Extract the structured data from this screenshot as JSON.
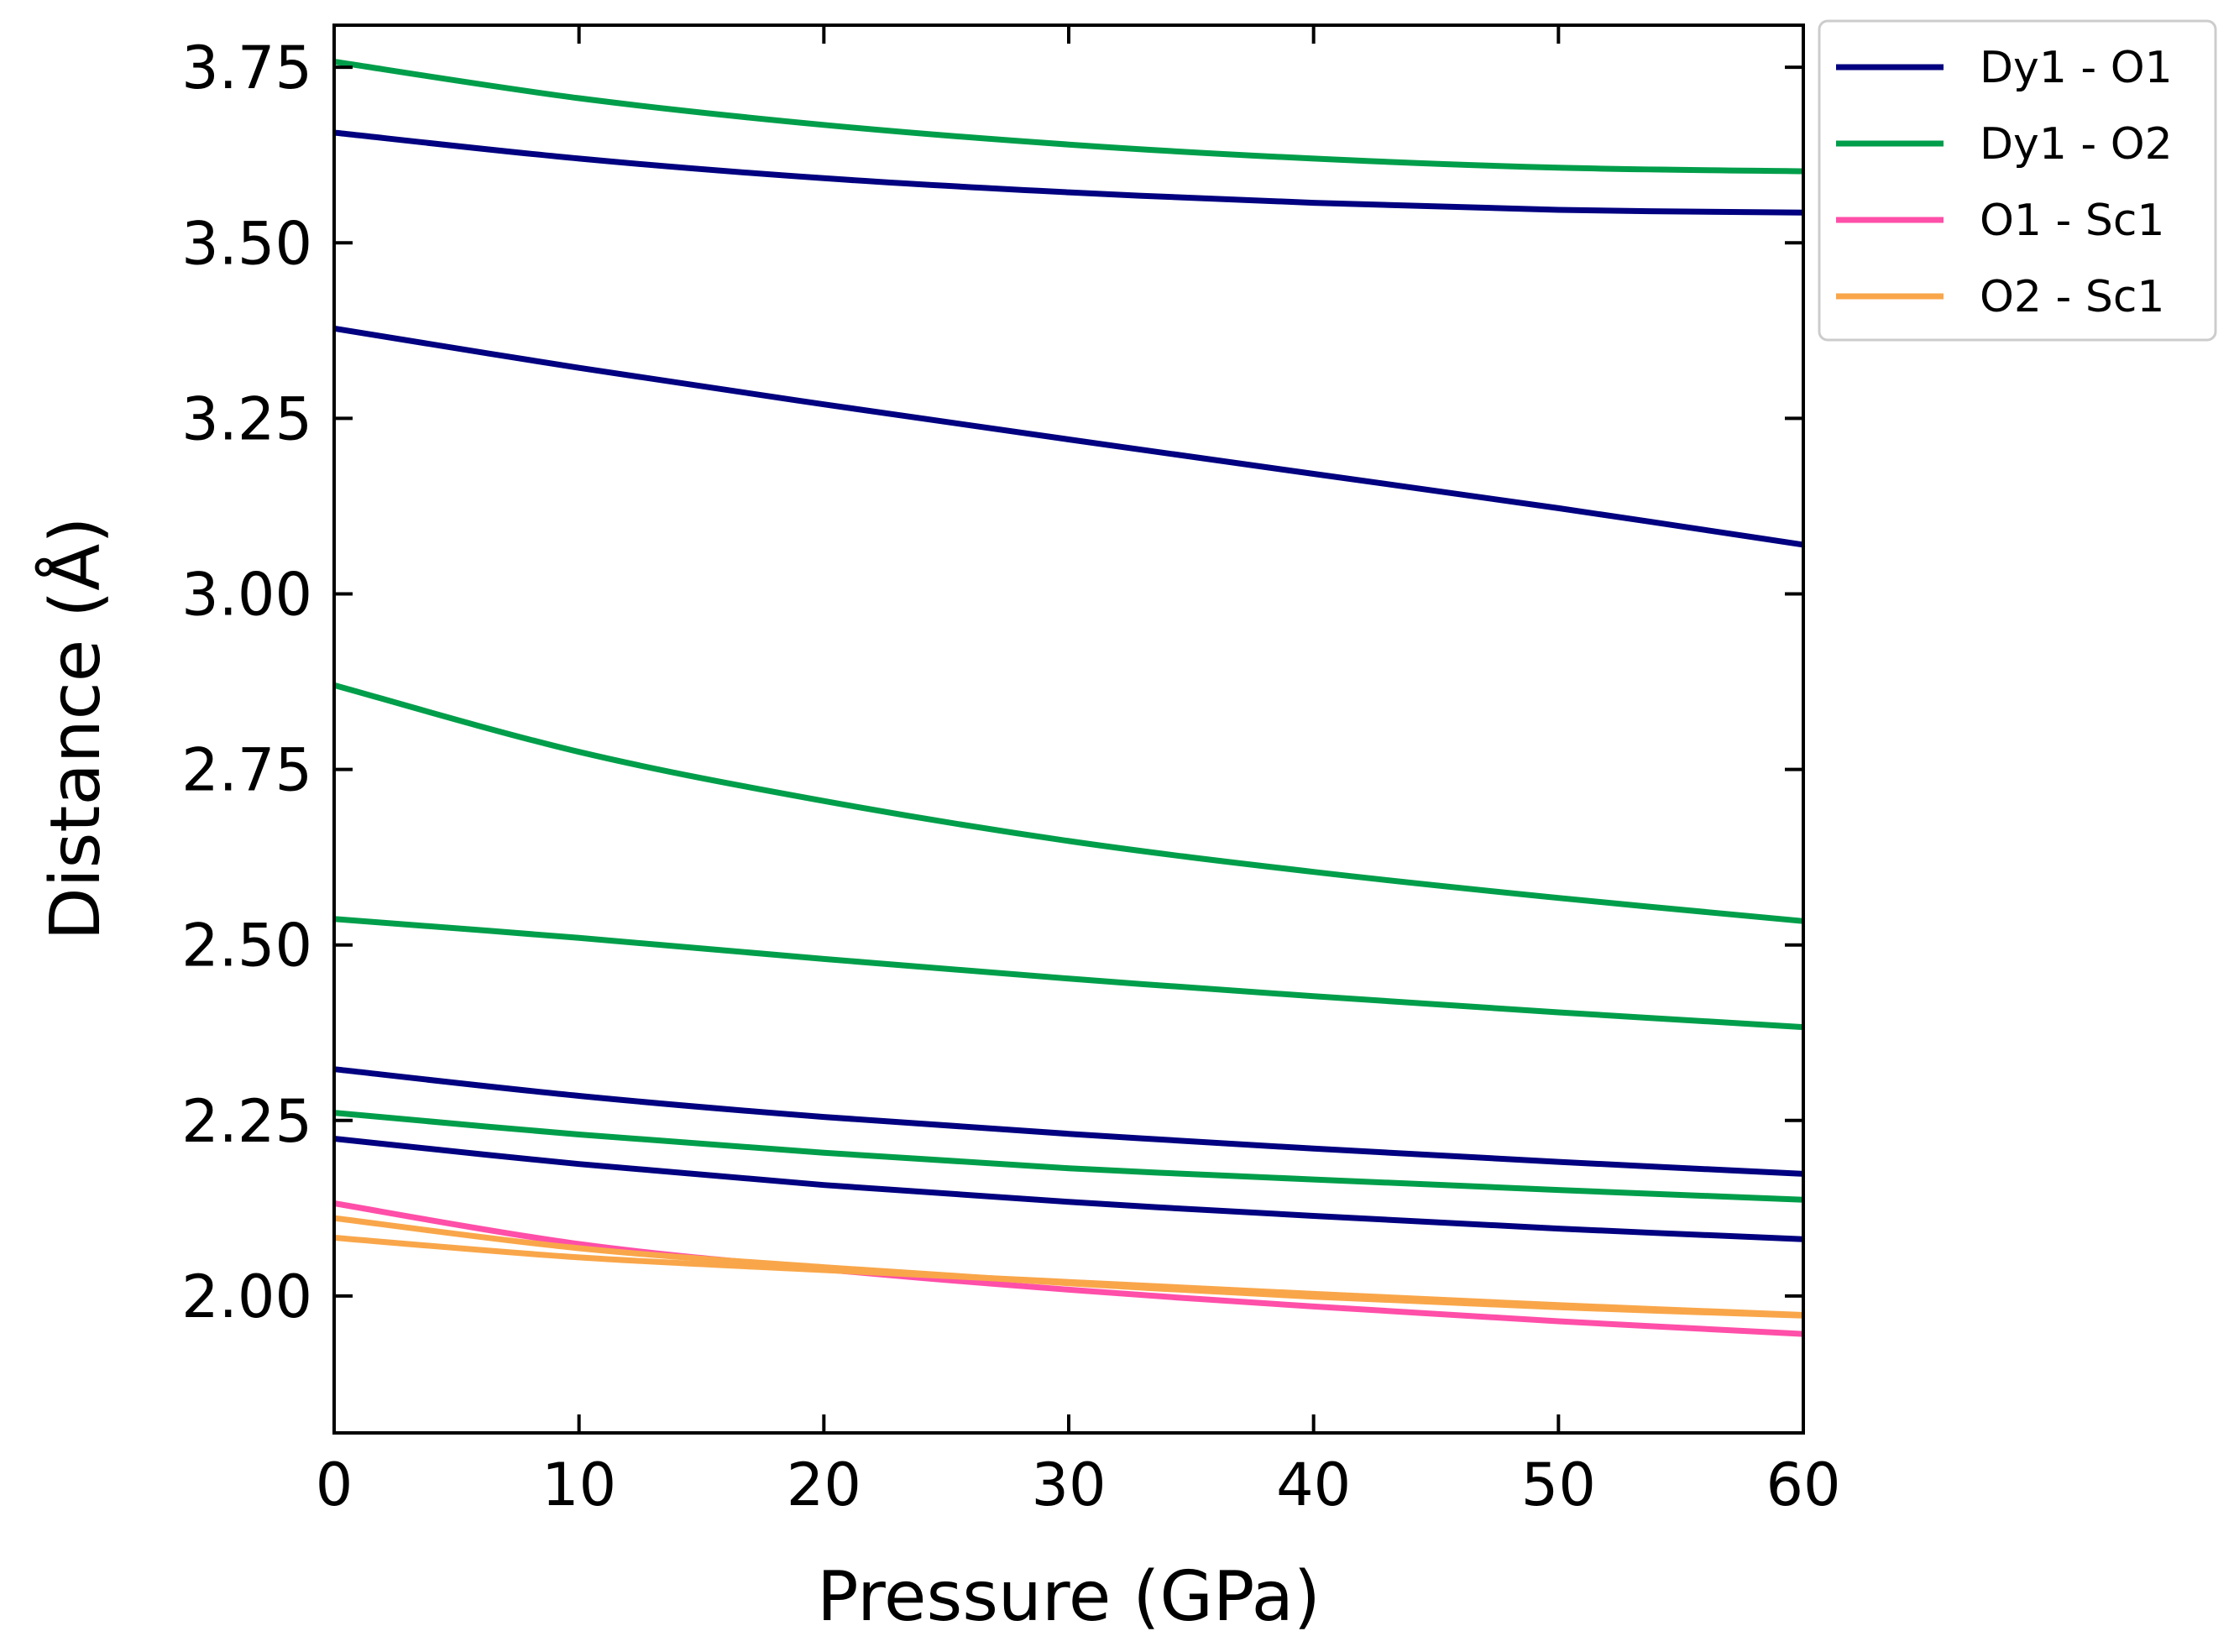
{
  "chart_data": {
    "type": "line",
    "title": "",
    "xlabel": "Pressure (GPa)",
    "ylabel": "Distance (Å)",
    "xlim": [
      0,
      60
    ],
    "ylim": [
      1.805,
      3.81
    ],
    "xticks": [
      0,
      10,
      20,
      30,
      40,
      50,
      60
    ],
    "xtick_labels": [
      "0",
      "10",
      "20",
      "30",
      "40",
      "50",
      "60"
    ],
    "yticks": [
      2.0,
      2.25,
      2.5,
      2.75,
      3.0,
      3.25,
      3.5,
      3.75
    ],
    "ytick_labels": [
      "2.00",
      "2.25",
      "2.50",
      "2.75",
      "3.00",
      "3.25",
      "3.50",
      "3.75"
    ],
    "grid": false,
    "legend_position": "outside-top-right",
    "legend": [
      {
        "label": "Dy1 - O1",
        "color": "#000080"
      },
      {
        "label": "Dy1 - O2",
        "color": "#009E4A"
      },
      {
        "label": "O1 - Sc1",
        "color": "#FF4FA8"
      },
      {
        "label": "O2 - Sc1",
        "color": "#F9A64A"
      }
    ],
    "x": [
      0,
      10,
      20,
      30,
      40,
      50,
      60
    ],
    "series": [
      {
        "name": "Dy1 - O1",
        "color": "#000080",
        "values": [
          3.657,
          3.62,
          3.592,
          3.572,
          3.557,
          3.547,
          3.543
        ]
      },
      {
        "name": "Dy1 - O1",
        "color": "#000080",
        "values": [
          3.378,
          3.322,
          3.27,
          3.22,
          3.171,
          3.122,
          3.07
        ]
      },
      {
        "name": "Dy1 - O1",
        "color": "#000080",
        "values": [
          2.323,
          2.285,
          2.255,
          2.231,
          2.21,
          2.191,
          2.174
        ]
      },
      {
        "name": "Dy1 - O1",
        "color": "#000080",
        "values": [
          2.224,
          2.188,
          2.158,
          2.134,
          2.114,
          2.096,
          2.081
        ]
      },
      {
        "name": "Dy1 - O2",
        "color": "#009E4A",
        "values": [
          3.758,
          3.706,
          3.668,
          3.64,
          3.62,
          3.607,
          3.602
        ]
      },
      {
        "name": "Dy1 - O2",
        "color": "#009E4A",
        "values": [
          2.87,
          2.775,
          2.705,
          2.648,
          2.604,
          2.567,
          2.534
        ]
      },
      {
        "name": "Dy1 - O2",
        "color": "#009E4A",
        "values": [
          2.537,
          2.51,
          2.48,
          2.452,
          2.427,
          2.404,
          2.383
        ]
      },
      {
        "name": "Dy1 - O2",
        "color": "#009E4A",
        "values": [
          2.261,
          2.23,
          2.204,
          2.182,
          2.166,
          2.151,
          2.137
        ]
      },
      {
        "name": "O1 - Sc1",
        "color": "#FF4FA8",
        "values": [
          2.132,
          2.074,
          2.038,
          2.009,
          1.985,
          1.964,
          1.946
        ]
      },
      {
        "name": "O2 - Sc1",
        "color": "#F9A64A",
        "values": [
          2.111,
          2.068,
          2.041,
          2.018,
          1.999,
          1.984,
          1.972
        ]
      },
      {
        "name": "O2 - Sc1",
        "color": "#F9A64A",
        "values": [
          2.083,
          2.055,
          2.037,
          2.02,
          2.003,
          1.987,
          1.973
        ]
      }
    ]
  }
}
